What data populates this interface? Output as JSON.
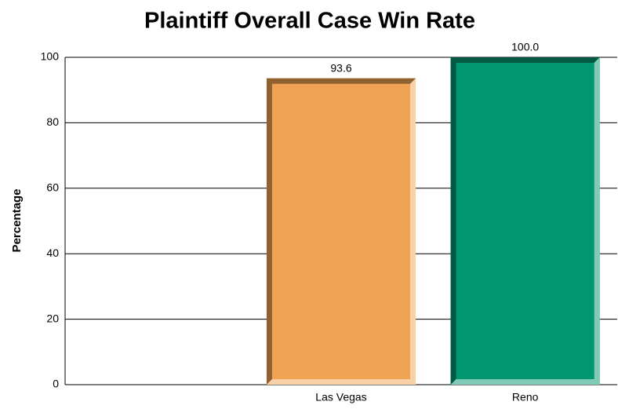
{
  "chart_data": {
    "type": "bar",
    "title": "Plaintiff Overall Case Win Rate",
    "y_label": "Percentage",
    "categories": [
      null,
      "Las Vegas",
      "Reno"
    ],
    "values": [
      null,
      93.6,
      100
    ],
    "value_labels": [
      null,
      "93.6",
      "100.0"
    ],
    "colors": [
      null,
      "#f0a352",
      "#009670"
    ],
    "ylim": [
      0,
      100
    ],
    "yticks": [
      0,
      20,
      40,
      60,
      80,
      100
    ],
    "grid": true
  }
}
